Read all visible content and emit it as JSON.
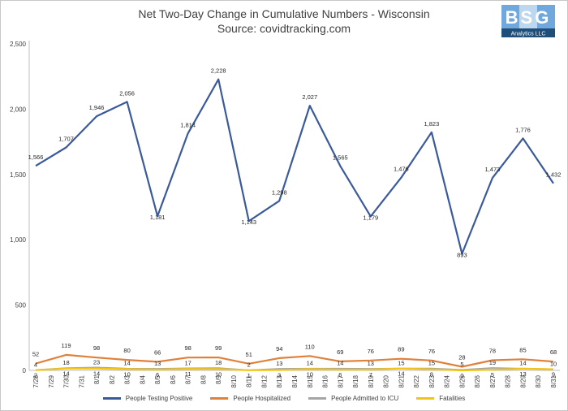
{
  "title": "Net Two-Day Change in Cumulative Numbers - Wisconsin",
  "subtitle": "Source: covidtracking.com",
  "logo": {
    "text": "BSG",
    "subtext": "Analytics LLC",
    "colors": {
      "tile_dark": "#6fa8dc",
      "tile_light": "#bcd7ee",
      "letters": "#ffffff",
      "band": "#1f4e79"
    }
  },
  "colors": {
    "positive": "#3a5a9c",
    "hospitalized": "#e0813b",
    "icu": "#a5a5a5",
    "fatalities": "#f2c318",
    "axis": "#404040",
    "grid": "#d9d9d9"
  },
  "chart_data": {
    "type": "line",
    "title": "Net Two-Day Change in Cumulative Numbers - Wisconsin",
    "subtitle": "Source: covidtracking.com",
    "xlabel": "",
    "ylabel": "",
    "ylim": [
      0,
      2500
    ],
    "yticks": [
      "0",
      "500",
      "1,000",
      "1,500",
      "2,000",
      "2,500"
    ],
    "ytick_values": [
      0,
      500,
      1000,
      1500,
      2000,
      2500
    ],
    "grid": false,
    "legend_position": "bottom",
    "categories": [
      "7/28",
      "7/29",
      "7/30",
      "7/31",
      "8/1",
      "8/2",
      "8/3",
      "8/4",
      "8/5",
      "8/6",
      "8/7",
      "8/8",
      "8/9",
      "8/10",
      "8/11",
      "8/12",
      "8/13",
      "8/14",
      "8/15",
      "8/16",
      "8/17",
      "8/18",
      "8/19",
      "8/20",
      "8/21",
      "8/22",
      "8/23",
      "8/24",
      "8/25",
      "8/26",
      "8/27",
      "8/28",
      "8/29",
      "8/30",
      "8/31"
    ],
    "series": [
      {
        "name": "People Testing Positive",
        "color_key": "positive",
        "points": [
          {
            "x": "7/28",
            "y": 1566,
            "label": "1,566"
          },
          {
            "x": "7/30",
            "y": 1707,
            "label": "1,707"
          },
          {
            "x": "8/1",
            "y": 1946,
            "label": "1,946"
          },
          {
            "x": "8/3",
            "y": 2056,
            "label": "2,056"
          },
          {
            "x": "8/5",
            "y": 1181,
            "label": "1,181"
          },
          {
            "x": "8/7",
            "y": 1814,
            "label": "1,814"
          },
          {
            "x": "8/9",
            "y": 2228,
            "label": "2,228"
          },
          {
            "x": "8/11",
            "y": 1143,
            "label": "1,143"
          },
          {
            "x": "8/13",
            "y": 1298,
            "label": "1,298"
          },
          {
            "x": "8/15",
            "y": 2027,
            "label": "2,027"
          },
          {
            "x": "8/17",
            "y": 1565,
            "label": "1,565"
          },
          {
            "x": "8/19",
            "y": 1179,
            "label": "1,179"
          },
          {
            "x": "8/21",
            "y": 1476,
            "label": "1,476"
          },
          {
            "x": "8/23",
            "y": 1823,
            "label": "1,823"
          },
          {
            "x": "8/25",
            "y": 893,
            "label": "893"
          },
          {
            "x": "8/27",
            "y": 1473,
            "label": "1,473"
          },
          {
            "x": "8/29",
            "y": 1776,
            "label": "1,776"
          },
          {
            "x": "8/31",
            "y": 1432,
            "label": "1,432"
          }
        ]
      },
      {
        "name": "People Hospitalized",
        "color_key": "hospitalized",
        "points": [
          {
            "x": "7/28",
            "y": 52,
            "label": "52"
          },
          {
            "x": "7/30",
            "y": 119,
            "label": "119"
          },
          {
            "x": "8/1",
            "y": 98,
            "label": "98"
          },
          {
            "x": "8/3",
            "y": 80,
            "label": "80"
          },
          {
            "x": "8/5",
            "y": 66,
            "label": "66"
          },
          {
            "x": "8/7",
            "y": 98,
            "label": "98"
          },
          {
            "x": "8/9",
            "y": 99,
            "label": "99"
          },
          {
            "x": "8/11",
            "y": 51,
            "label": "51"
          },
          {
            "x": "8/13",
            "y": 94,
            "label": "94"
          },
          {
            "x": "8/15",
            "y": 110,
            "label": "110"
          },
          {
            "x": "8/17",
            "y": 69,
            "label": "69"
          },
          {
            "x": "8/19",
            "y": 76,
            "label": "76"
          },
          {
            "x": "8/21",
            "y": 89,
            "label": "89"
          },
          {
            "x": "8/23",
            "y": 76,
            "label": "76"
          },
          {
            "x": "8/25",
            "y": 28,
            "label": "28"
          },
          {
            "x": "8/27",
            "y": 78,
            "label": "78"
          },
          {
            "x": "8/29",
            "y": 85,
            "label": "85"
          },
          {
            "x": "8/31",
            "y": 68,
            "label": "68"
          }
        ]
      },
      {
        "name": "People Admitted to ICU",
        "color_key": "icu",
        "points": [
          {
            "x": "7/28",
            "y": 4,
            "label": "4"
          },
          {
            "x": "7/30",
            "y": 18,
            "label": "18"
          },
          {
            "x": "8/1",
            "y": 23,
            "label": "23"
          },
          {
            "x": "8/3",
            "y": 14,
            "label": "14"
          },
          {
            "x": "8/5",
            "y": 13,
            "label": "13"
          },
          {
            "x": "8/7",
            "y": 17,
            "label": "17"
          },
          {
            "x": "8/9",
            "y": 18,
            "label": "18"
          },
          {
            "x": "8/11",
            "y": 2,
            "label": "2"
          },
          {
            "x": "8/13",
            "y": 13,
            "label": "13"
          },
          {
            "x": "8/15",
            "y": 14,
            "label": "14"
          },
          {
            "x": "8/17",
            "y": 14,
            "label": "14"
          },
          {
            "x": "8/19",
            "y": 13,
            "label": "13"
          },
          {
            "x": "8/21",
            "y": 15,
            "label": "15"
          },
          {
            "x": "8/23",
            "y": 15,
            "label": "15"
          },
          {
            "x": "8/25",
            "y": 5,
            "label": "5"
          },
          {
            "x": "8/27",
            "y": 19,
            "label": "19"
          },
          {
            "x": "8/29",
            "y": 14,
            "label": "14"
          },
          {
            "x": "8/31",
            "y": 10,
            "label": "10"
          }
        ]
      },
      {
        "name": "Fatalities",
        "color_key": "fatalities",
        "points": [
          {
            "x": "7/28",
            "y": 2,
            "label": "2"
          },
          {
            "x": "7/30",
            "y": 14,
            "label": "14"
          },
          {
            "x": "8/1",
            "y": 14,
            "label": "14"
          },
          {
            "x": "8/3",
            "y": 10,
            "label": "10"
          },
          {
            "x": "8/5",
            "y": 6,
            "label": "6"
          },
          {
            "x": "8/7",
            "y": 11,
            "label": "11"
          },
          {
            "x": "8/9",
            "y": 10,
            "label": "10"
          },
          {
            "x": "8/11",
            "y": 1,
            "label": "1"
          },
          {
            "x": "8/13",
            "y": 3,
            "label": "3"
          },
          {
            "x": "8/15",
            "y": 10,
            "label": "10"
          },
          {
            "x": "8/17",
            "y": 6,
            "label": "6"
          },
          {
            "x": "8/19",
            "y": 7,
            "label": "7"
          },
          {
            "x": "8/21",
            "y": 14,
            "label": "14"
          },
          {
            "x": "8/23",
            "y": 8,
            "label": "8"
          },
          {
            "x": "8/25",
            "y": 0,
            "label": "0"
          },
          {
            "x": "8/27",
            "y": 5,
            "label": "5"
          },
          {
            "x": "8/29",
            "y": 13,
            "label": "13"
          },
          {
            "x": "8/31",
            "y": 9,
            "label": "9"
          }
        ]
      }
    ]
  }
}
